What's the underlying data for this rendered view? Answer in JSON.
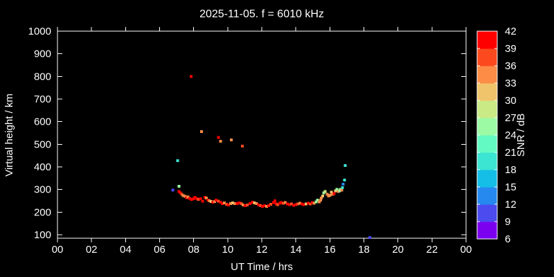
{
  "title": "2025-11-05. f = 6010 kHz",
  "colors": {
    "background": "#000000",
    "axis": "#ffffff",
    "text": "#ffffff"
  },
  "chart_data": {
    "type": "scatter",
    "title": "2025-11-05. f = 6010 kHz",
    "xlabel": "UT Time / hrs",
    "ylabel": "Virtual height / km",
    "colorbar_label": "SNR / dB",
    "xlim": [
      0,
      24
    ],
    "ylim": [
      85,
      1000
    ],
    "grid": false,
    "legend": "colorbar-right",
    "marker": "square",
    "marker_size_px": 4,
    "x_ticks": [
      {
        "v": 0,
        "label": "00"
      },
      {
        "v": 2,
        "label": "02"
      },
      {
        "v": 4,
        "label": "04"
      },
      {
        "v": 6,
        "label": "06"
      },
      {
        "v": 8,
        "label": "08"
      },
      {
        "v": 10,
        "label": "10"
      },
      {
        "v": 12,
        "label": "12"
      },
      {
        "v": 14,
        "label": "14"
      },
      {
        "v": 16,
        "label": "16"
      },
      {
        "v": 18,
        "label": "18"
      },
      {
        "v": 20,
        "label": "20"
      },
      {
        "v": 22,
        "label": "22"
      },
      {
        "v": 24,
        "label": "00"
      }
    ],
    "y_ticks": [
      100,
      200,
      300,
      400,
      500,
      600,
      700,
      800,
      900,
      1000
    ],
    "colorbar": {
      "min": 6,
      "max": 42,
      "ticks": [
        6,
        9,
        12,
        15,
        18,
        21,
        24,
        27,
        30,
        33,
        36,
        39,
        42
      ],
      "segments": [
        {
          "from": 6,
          "to": 9,
          "color": "#7C00F0"
        },
        {
          "from": 9,
          "to": 12,
          "color": "#4B4BF0"
        },
        {
          "from": 12,
          "to": 15,
          "color": "#2689F0"
        },
        {
          "from": 15,
          "to": 18,
          "color": "#14BEE6"
        },
        {
          "from": 18,
          "to": 21,
          "color": "#3CE4D2"
        },
        {
          "from": 21,
          "to": 24,
          "color": "#64FAC3"
        },
        {
          "from": 24,
          "to": 27,
          "color": "#9CFAA5"
        },
        {
          "from": 27,
          "to": 30,
          "color": "#C9EA85"
        },
        {
          "from": 30,
          "to": 33,
          "color": "#F0C46A"
        },
        {
          "from": 33,
          "to": 36,
          "color": "#FC8C46"
        },
        {
          "from": 36,
          "to": 39,
          "color": "#FC4A1E"
        },
        {
          "from": 39,
          "to": 42,
          "color": "#FF0000"
        }
      ]
    },
    "points_format": [
      "ut_hrs",
      "virtual_height_km",
      "snr_db"
    ],
    "points": [
      [
        6.77,
        297,
        10
      ],
      [
        7.05,
        428,
        20
      ],
      [
        7.14,
        315,
        25
      ],
      [
        7.86,
        799,
        40
      ],
      [
        8.46,
        556,
        34
      ],
      [
        9.45,
        530,
        40
      ],
      [
        9.57,
        514,
        34
      ],
      [
        10.22,
        520,
        34
      ],
      [
        10.86,
        492,
        37
      ],
      [
        18.35,
        88,
        10
      ],
      [
        7.14,
        291,
        40
      ],
      [
        7.22,
        285,
        40
      ],
      [
        7.3,
        279,
        37
      ],
      [
        7.38,
        273,
        34
      ],
      [
        7.5,
        270,
        34
      ],
      [
        7.58,
        264,
        40
      ],
      [
        7.66,
        267,
        34
      ],
      [
        7.77,
        261,
        40
      ],
      [
        7.88,
        256,
        40
      ],
      [
        7.99,
        259,
        40
      ],
      [
        8.08,
        265,
        40
      ],
      [
        8.19,
        259,
        40
      ],
      [
        8.28,
        256,
        37
      ],
      [
        8.39,
        259,
        40
      ],
      [
        8.53,
        249,
        40
      ],
      [
        8.66,
        265,
        40
      ],
      [
        8.75,
        262,
        34
      ],
      [
        8.84,
        254,
        40
      ],
      [
        8.93,
        250,
        34
      ],
      [
        9.03,
        247,
        31
      ],
      [
        9.14,
        244,
        40
      ],
      [
        9.23,
        247,
        34
      ],
      [
        9.32,
        253,
        40
      ],
      [
        9.45,
        249,
        37
      ],
      [
        9.57,
        244,
        40
      ],
      [
        9.69,
        238,
        40
      ],
      [
        9.81,
        241,
        34
      ],
      [
        9.93,
        235,
        37
      ],
      [
        10.05,
        232,
        40
      ],
      [
        10.17,
        238,
        34
      ],
      [
        10.29,
        241,
        31
      ],
      [
        10.41,
        238,
        34
      ],
      [
        10.55,
        238,
        40
      ],
      [
        10.67,
        241,
        40
      ],
      [
        10.79,
        238,
        37
      ],
      [
        10.91,
        232,
        34
      ],
      [
        11.03,
        229,
        40
      ],
      [
        11.15,
        232,
        37
      ],
      [
        11.3,
        238,
        40
      ],
      [
        11.45,
        244,
        40
      ],
      [
        11.57,
        241,
        31
      ],
      [
        11.69,
        238,
        34
      ],
      [
        11.81,
        232,
        40
      ],
      [
        11.93,
        229,
        37
      ],
      [
        12.05,
        226,
        40
      ],
      [
        12.17,
        229,
        40
      ],
      [
        12.29,
        226,
        34
      ],
      [
        12.41,
        229,
        40
      ],
      [
        12.53,
        235,
        37
      ],
      [
        12.69,
        242,
        40
      ],
      [
        12.77,
        251,
        40
      ],
      [
        12.85,
        236,
        40
      ],
      [
        12.93,
        233,
        37
      ],
      [
        13.05,
        239,
        40
      ],
      [
        13.14,
        242,
        40
      ],
      [
        13.26,
        239,
        37
      ],
      [
        13.38,
        242,
        34
      ],
      [
        13.5,
        236,
        40
      ],
      [
        13.62,
        233,
        40
      ],
      [
        13.75,
        236,
        37
      ],
      [
        13.87,
        230,
        40
      ],
      [
        13.99,
        233,
        40
      ],
      [
        14.11,
        236,
        37
      ],
      [
        14.23,
        239,
        34
      ],
      [
        14.35,
        236,
        40
      ],
      [
        14.47,
        233,
        40
      ],
      [
        14.6,
        236,
        31
      ],
      [
        14.72,
        239,
        40
      ],
      [
        14.84,
        236,
        37
      ],
      [
        14.96,
        242,
        40
      ],
      [
        15.08,
        239,
        34
      ],
      [
        15.2,
        245,
        25
      ],
      [
        15.28,
        254,
        25
      ],
      [
        15.37,
        245,
        34
      ],
      [
        15.45,
        254,
        34
      ],
      [
        15.49,
        263,
        34
      ],
      [
        15.57,
        272,
        31
      ],
      [
        15.65,
        285,
        25
      ],
      [
        15.73,
        291,
        28
      ],
      [
        15.85,
        279,
        34
      ],
      [
        15.93,
        272,
        34
      ],
      [
        16.01,
        275,
        34
      ],
      [
        16.09,
        288,
        31
      ],
      [
        16.17,
        279,
        34
      ],
      [
        16.26,
        282,
        40
      ],
      [
        16.34,
        294,
        31
      ],
      [
        16.42,
        300,
        25
      ],
      [
        16.5,
        291,
        34
      ],
      [
        16.58,
        294,
        25
      ],
      [
        16.62,
        300,
        25
      ],
      [
        16.7,
        297,
        34
      ],
      [
        16.74,
        309,
        19
      ],
      [
        16.78,
        324,
        13
      ],
      [
        16.87,
        342,
        19
      ],
      [
        16.91,
        406,
        19
      ]
    ]
  }
}
